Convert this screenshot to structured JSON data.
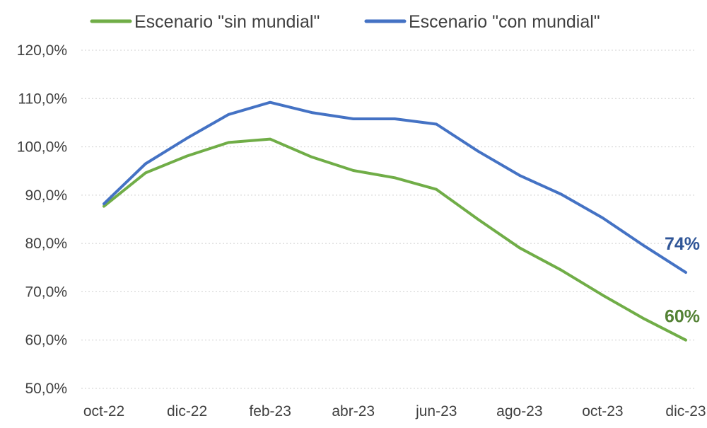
{
  "chart_data": {
    "type": "line",
    "title": "",
    "xlabel": "",
    "ylabel": "",
    "ylim": [
      0.5,
      1.2
    ],
    "y_ticks": [
      "50,0%",
      "60,0%",
      "70,0%",
      "80,0%",
      "90,0%",
      "100,0%",
      "110,0%",
      "120,0%"
    ],
    "y_tick_values": [
      0.5,
      0.6,
      0.7,
      0.8,
      0.9,
      1.0,
      1.1,
      1.2
    ],
    "x": [
      "oct-22",
      "nov-22",
      "dic-22",
      "ene-23",
      "feb-23",
      "mar-23",
      "abr-23",
      "may-23",
      "jun-23",
      "jul-23",
      "ago-23",
      "sep-23",
      "oct-23",
      "nov-23",
      "dic-23"
    ],
    "x_tick_labels": [
      "oct-22",
      "dic-22",
      "feb-23",
      "abr-23",
      "jun-23",
      "ago-23",
      "oct-23",
      "dic-23"
    ],
    "grid": true,
    "legend_position": "top",
    "series": [
      {
        "name": "Escenario \"sin mundial\"",
        "color": "#70AD47",
        "label_color": "#548235",
        "end_label": "60%",
        "values": [
          0.877,
          0.946,
          0.981,
          1.009,
          1.016,
          0.979,
          0.951,
          0.936,
          0.912,
          0.85,
          0.791,
          0.745,
          0.693,
          0.644,
          0.6
        ]
      },
      {
        "name": "Escenario \"con mundial\"",
        "color": "#4472C4",
        "label_color": "#2F5597",
        "end_label": "74%",
        "values": [
          0.882,
          0.965,
          1.018,
          1.067,
          1.092,
          1.071,
          1.058,
          1.058,
          1.047,
          0.991,
          0.941,
          0.902,
          0.853,
          0.795,
          0.74
        ]
      }
    ]
  }
}
